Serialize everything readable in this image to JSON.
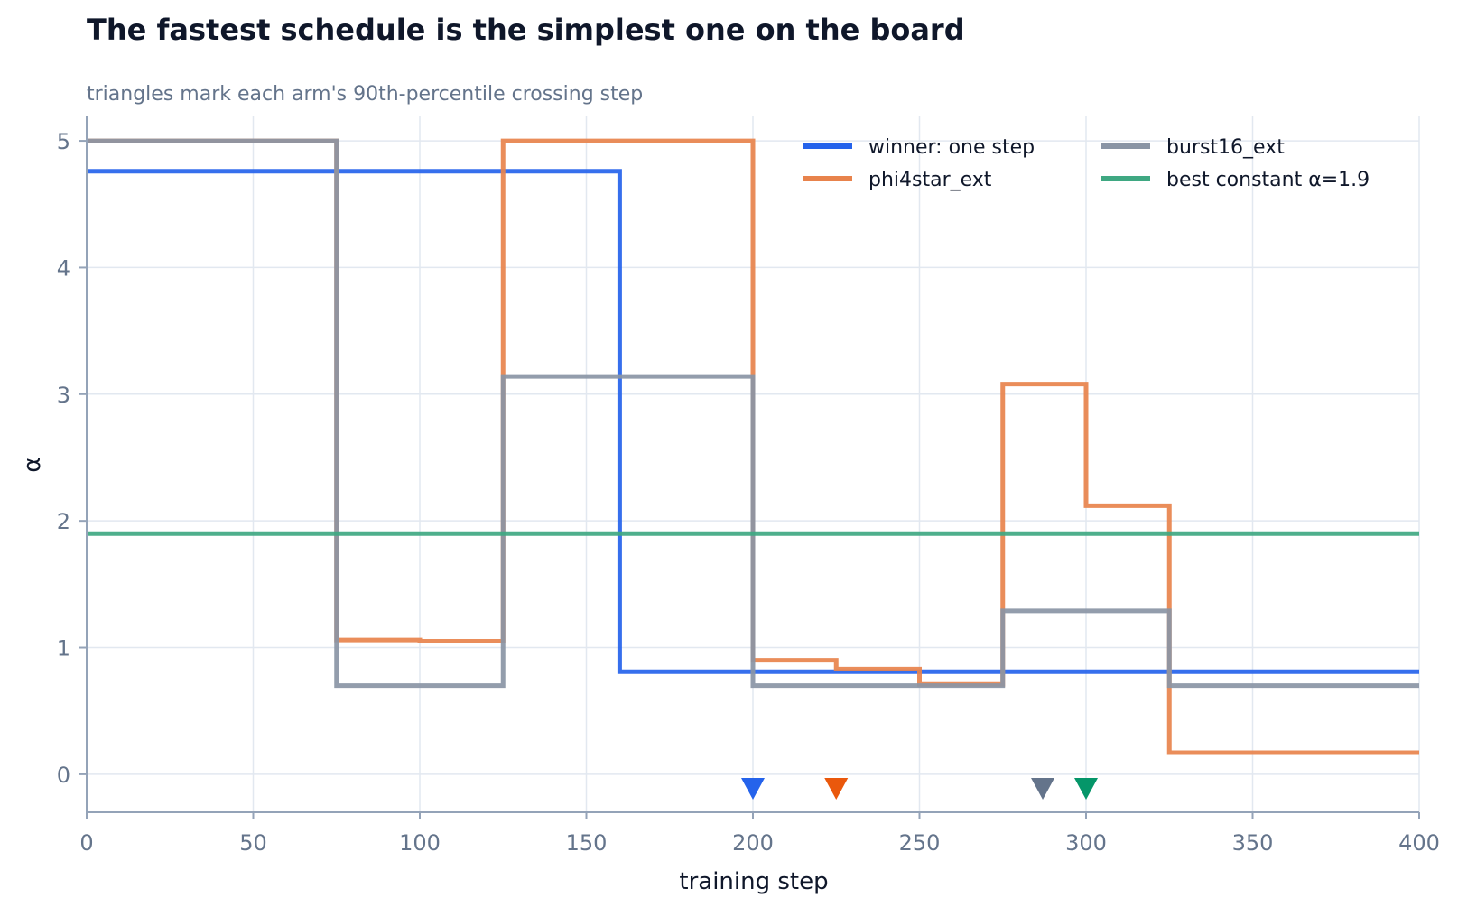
{
  "chart_data": {
    "type": "line",
    "step": "post",
    "title": "The fastest schedule is the simplest one on the board",
    "subtitle": "triangles mark each arm's 90th-percentile crossing step",
    "xlabel": "training step",
    "ylabel": "α",
    "xlim": [
      0,
      400
    ],
    "ylim": [
      -0.3,
      5.2
    ],
    "xticks": [
      0,
      50,
      100,
      150,
      200,
      250,
      300,
      350,
      400
    ],
    "yticks": [
      0,
      1,
      2,
      3,
      4,
      5
    ],
    "grid": true,
    "legend_placement": "top-right",
    "series": [
      {
        "name": "winner: one step",
        "color": "#2563eb",
        "x": [
          0,
          160,
          400
        ],
        "y": [
          4.76,
          0.81,
          0.81
        ],
        "crossing_step": 200,
        "marker_color": "#2563eb"
      },
      {
        "name": "phi4star_ext",
        "color": "#e8834c",
        "x": [
          0,
          75,
          100,
          125,
          200,
          225,
          250,
          275,
          300,
          325,
          400
        ],
        "y": [
          5.0,
          1.06,
          1.05,
          5.0,
          0.9,
          0.83,
          0.71,
          3.08,
          2.12,
          0.17,
          0.17
        ],
        "crossing_step": 225,
        "marker_color": "#ea580c"
      },
      {
        "name": "burst16_ext",
        "color": "#8a95a5",
        "x": [
          0,
          75,
          125,
          200,
          275,
          325,
          400
        ],
        "y": [
          5.0,
          0.7,
          3.14,
          0.7,
          1.29,
          0.7,
          0.7
        ],
        "crossing_step": 287,
        "marker_color": "#64748b"
      },
      {
        "name": "best constant α=1.9",
        "color": "#3fa882",
        "x": [
          0,
          400
        ],
        "y": [
          1.9,
          1.9
        ],
        "crossing_step": 300,
        "marker_color": "#059669"
      }
    ]
  }
}
